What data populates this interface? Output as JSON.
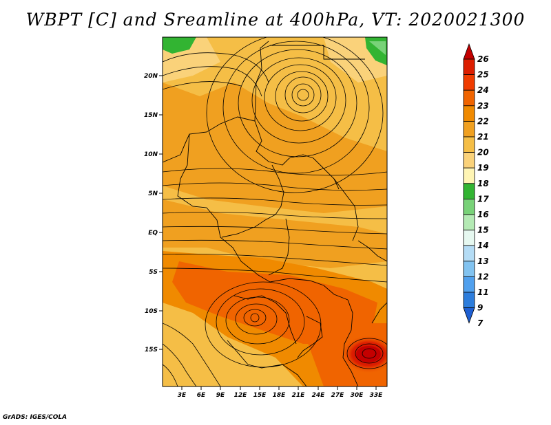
{
  "title": "WBPT [C] and Sreamline at 400hPa, VT: 2020021300",
  "map": {
    "lat_labels": [
      "20N",
      "15N",
      "10N",
      "5N",
      "EQ",
      "5S",
      "10S",
      "15S"
    ],
    "lon_labels": [
      "3E",
      "6E",
      "9E",
      "12E",
      "15E",
      "18E",
      "21E",
      "24E",
      "27E",
      "30E",
      "33E"
    ]
  },
  "colorbar": {
    "levels": [
      "26",
      "25",
      "24",
      "23",
      "22",
      "21",
      "20",
      "19",
      "18",
      "17",
      "16",
      "15",
      "14",
      "13",
      "12",
      "11",
      "9",
      "7"
    ],
    "colors": [
      "#c40000",
      "#dc1e00",
      "#f03c00",
      "#f06400",
      "#f08a00",
      "#f0a020",
      "#f5be46",
      "#fad27a",
      "#fff5b4",
      "#32b432",
      "#78d278",
      "#b4eab4",
      "#e6f8f0",
      "#b4dcf5",
      "#82c3f0",
      "#50a0ee",
      "#2d7ddc",
      "#1e5fd2"
    ]
  },
  "credit": "GrADS: IGES/COLA"
}
